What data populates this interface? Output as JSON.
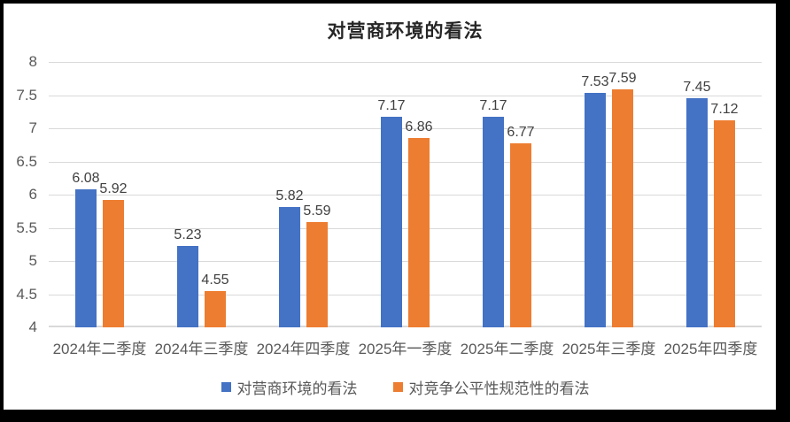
{
  "frame": {
    "background": "#000000",
    "canvas_background": "#FFFFFF"
  },
  "chart_data": {
    "type": "bar",
    "title": "对营商环境的看法",
    "categories": [
      "2024年二季度",
      "2024年三季度",
      "2024年四季度",
      "2025年一季度",
      "2025年二季度",
      "2025年三季度",
      "2025年四季度"
    ],
    "series": [
      {
        "name": "对营商环境的看法",
        "color": "#4472C4",
        "values": [
          6.08,
          5.23,
          5.82,
          7.17,
          7.17,
          7.53,
          7.45
        ]
      },
      {
        "name": "对竞争公平性规范性的看法",
        "color": "#ED7D31",
        "values": [
          5.92,
          4.55,
          5.59,
          6.86,
          6.77,
          7.59,
          7.12
        ]
      }
    ],
    "data_labels": [
      [
        "6.08",
        "5.23",
        "5.82",
        "7.17",
        "7.17",
        "7.53",
        "7.45"
      ],
      [
        "5.92",
        "4.55",
        "5.59",
        "6.86",
        "6.77",
        "7.59",
        "7.12"
      ]
    ],
    "xlabel": "",
    "ylabel": "",
    "ylim": [
      4,
      8
    ],
    "ytick_step": 0.5,
    "yticks": [
      "8",
      "7.5",
      "7",
      "6.5",
      "6",
      "5.5",
      "5",
      "4.5",
      "4"
    ],
    "grid": true,
    "legend_position": "bottom",
    "colors": {
      "gridline": "#D9D9D9",
      "axis_line": "#D9D9D9",
      "tick_text": "#595959",
      "data_label_text": "#404040",
      "title_text": "#262626"
    }
  }
}
